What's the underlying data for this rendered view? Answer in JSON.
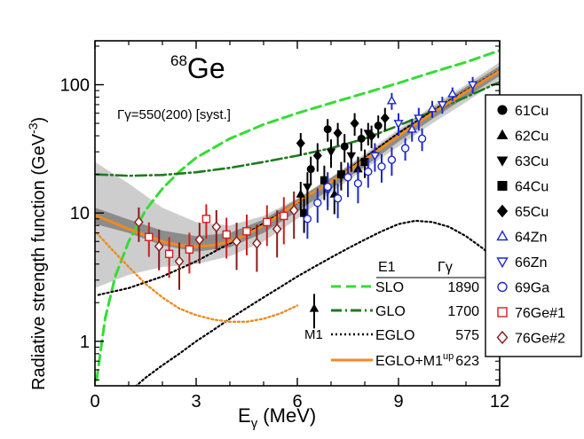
{
  "chart_data": {
    "type": "scatter",
    "nucleus": {
      "mass": "68",
      "element": "Ge"
    },
    "width_annotation": "Γγ=550(200) [syst.]",
    "xlabel": {
      "main": "E",
      "sub": "γ",
      "rest": " (MeV)"
    },
    "ylabel": {
      "main": "Radiative strength function (GeV",
      "sup": "-3",
      "end": ")"
    },
    "x_ticks": [
      0,
      3,
      6,
      9,
      12
    ],
    "y_ticks": [
      {
        "v": 1,
        "label": "1"
      },
      {
        "v": 10,
        "label": "10"
      },
      {
        "v": 100,
        "label": "100"
      }
    ],
    "xlim": [
      0,
      12
    ],
    "ylim": [
      0.45,
      220
    ],
    "y_scale": "log",
    "legend_markers": [
      {
        "label": "61Cu",
        "marker": "circle",
        "filled": true,
        "color": "#000000"
      },
      {
        "label": "62Cu",
        "marker": "triangle-up",
        "filled": true,
        "color": "#000000"
      },
      {
        "label": "63Cu",
        "marker": "triangle-down",
        "filled": true,
        "color": "#000000"
      },
      {
        "label": "64Cu",
        "marker": "square",
        "filled": true,
        "color": "#000000"
      },
      {
        "label": "65Cu",
        "marker": "diamond",
        "filled": true,
        "color": "#000000"
      },
      {
        "label": "64Zn",
        "marker": "triangle-up",
        "filled": false,
        "color": "#1e28c8"
      },
      {
        "label": "66Zn",
        "marker": "triangle-down",
        "filled": false,
        "color": "#1e28c8"
      },
      {
        "label": "69Ga",
        "marker": "circle",
        "filled": false,
        "color": "#1e28c8"
      },
      {
        "label": "76Ge#1",
        "marker": "square",
        "filled": false,
        "color": "#d21e1e"
      },
      {
        "label": "76Ge#2",
        "marker": "diamond",
        "filled": false,
        "color": "#8b1a1a"
      }
    ],
    "models_table": {
      "header": [
        "E1",
        "Γγ"
      ],
      "rows": [
        {
          "name": "SLO",
          "gamma": "1890",
          "color": "#33dd33",
          "dash": "long"
        },
        {
          "name": "GLO",
          "gamma": "1700",
          "color": "#1f7a1f",
          "dash": "dashdot"
        },
        {
          "name": "EGLO",
          "gamma": "575",
          "color": "#000000",
          "dash": "dot"
        },
        {
          "name": "EGLO+M1",
          "sup": "up",
          "gamma": "623",
          "color": "#f08a1e",
          "dash": "solid"
        }
      ]
    },
    "m1_label": "M1",
    "curves": {
      "SLO": {
        "x": [
          0.05,
          0.3,
          0.6,
          1.0,
          1.5,
          2.0,
          2.5,
          3.0,
          4.0,
          5.0,
          6.0,
          7.0,
          8.0,
          9.0,
          10.0,
          11.0,
          12.0
        ],
        "y": [
          0.5,
          1.5,
          3.2,
          6.0,
          10.5,
          15.5,
          21,
          27,
          38,
          49,
          60,
          72,
          86,
          103,
          125,
          150,
          185
        ]
      },
      "GLO": {
        "x": [
          0.05,
          1.0,
          2.0,
          3.0,
          4.0,
          5.0,
          6.0,
          7.0,
          8.0,
          9.0,
          10.0,
          11.0,
          12.0
        ],
        "y": [
          20,
          19.5,
          19.8,
          20.8,
          22.5,
          25,
          28,
          32,
          38,
          48,
          62,
          80,
          105
        ]
      },
      "EGLO": {
        "x": [
          0.1,
          1.0,
          2.0,
          3.0,
          4.0,
          5.0,
          6.0,
          7.0,
          8.0,
          9.0,
          10.0,
          11.0,
          12.0
        ],
        "y": [
          2.3,
          2.6,
          3.2,
          4.2,
          5.8,
          8.3,
          12.0,
          17.5,
          27,
          42,
          62,
          90,
          130
        ]
      },
      "EGLO+M1": {
        "x": [
          0.05,
          0.5,
          1.0,
          1.5,
          2.0,
          2.5,
          3.0,
          3.5,
          4.0,
          4.5,
          5.0,
          5.5,
          6.0,
          7.0,
          8.0,
          9.0,
          10.0,
          11.0,
          12.0
        ],
        "y": [
          9.5,
          8.5,
          7.5,
          6.7,
          6.0,
          5.6,
          5.5,
          5.6,
          6.0,
          6.8,
          8.0,
          9.8,
          12.2,
          17.5,
          26,
          40,
          60,
          88,
          128
        ]
      },
      "M1_spin_flip": {
        "x": [
          1.0,
          1.5,
          2.0,
          2.5,
          3.0,
          3.5,
          4.0,
          4.5,
          5.0,
          5.5,
          6.0,
          6.5,
          7.0,
          7.5,
          8.0,
          8.5,
          9.0,
          9.5,
          10.0,
          10.5,
          11.0,
          11.5,
          12.0
        ],
        "y": [
          0.4,
          0.52,
          0.65,
          0.8,
          1.0,
          1.22,
          1.5,
          1.82,
          2.2,
          2.65,
          3.2,
          3.8,
          4.5,
          5.3,
          6.2,
          7.2,
          8.2,
          8.7,
          8.5,
          7.8,
          6.6,
          5.3,
          4.1
        ]
      },
      "M1_orange_dotted": {
        "x": [
          0.05,
          0.5,
          1.0,
          1.5,
          2.0,
          2.5,
          3.0,
          3.5,
          4.0,
          4.5,
          5.0,
          5.5,
          6.0
        ],
        "y": [
          7.0,
          5.2,
          3.8,
          2.8,
          2.2,
          1.8,
          1.6,
          1.48,
          1.42,
          1.42,
          1.5,
          1.65,
          1.9
        ]
      }
    },
    "band_gray": {
      "x": [
        0.0,
        1.0,
        2.0,
        3.0,
        4.0,
        5.0,
        6.0,
        7.0,
        8.0,
        9.0,
        10.0,
        11.0,
        12.0
      ],
      "lo": [
        2.6,
        3.3,
        3.8,
        4.0,
        4.6,
        6.0,
        9.0,
        14.5,
        22,
        33,
        50,
        73,
        110
      ],
      "hi": [
        25,
        17,
        11,
        8.5,
        8.0,
        9.5,
        13.0,
        19,
        29,
        45,
        68,
        100,
        150
      ]
    },
    "band_dark": {
      "x": [
        0.0,
        1.0,
        2.0,
        3.0,
        4.0,
        5.0,
        6.0,
        7.0,
        8.0,
        9.0,
        10.0,
        11.0,
        12.0
      ],
      "lo": [
        8.2,
        7.0,
        5.6,
        5.0,
        5.4,
        7.0,
        10.3,
        15.5,
        23,
        36,
        54,
        80,
        117
      ],
      "hi": [
        11.0,
        8.9,
        7.3,
        6.6,
        7.0,
        8.9,
        12.8,
        18.8,
        28,
        43,
        65,
        96,
        140
      ]
    },
    "series": [
      {
        "name": "61Cu",
        "marker": "circle",
        "filled": true,
        "color": "#000000",
        "points": [
          [
            6.9,
            45,
            0.2
          ],
          [
            7.4,
            33,
            0.25
          ],
          [
            7.9,
            38,
            0.2
          ],
          [
            8.4,
            48,
            0.2
          ],
          [
            6.4,
            22,
            0.25
          ]
        ]
      },
      {
        "name": "62Cu",
        "marker": "triangle-up",
        "filled": true,
        "color": "#000000",
        "points": [
          [
            6.5,
            1.8,
            0.3
          ],
          [
            7.1,
            14,
            0.3
          ],
          [
            7.8,
            22,
            0.25
          ],
          [
            6.1,
            14,
            0.25
          ]
        ]
      },
      {
        "name": "63Cu",
        "marker": "triangle-down",
        "filled": true,
        "color": "#000000",
        "points": [
          [
            6.3,
            16,
            0.3
          ],
          [
            7.0,
            30,
            0.25
          ],
          [
            7.6,
            28,
            0.25
          ],
          [
            8.1,
            42,
            0.2
          ]
        ]
      },
      {
        "name": "64Cu",
        "marker": "square",
        "filled": true,
        "color": "#000000",
        "points": [
          [
            6.2,
            10,
            0.3
          ],
          [
            6.8,
            18,
            0.3
          ],
          [
            7.3,
            20,
            0.25
          ],
          [
            8.0,
            25,
            0.25
          ]
        ]
      },
      {
        "name": "65Cu",
        "marker": "diamond",
        "filled": true,
        "color": "#000000",
        "points": [
          [
            6.1,
            35,
            0.2
          ],
          [
            6.6,
            28,
            0.25
          ],
          [
            7.2,
            42,
            0.2
          ],
          [
            7.7,
            50,
            0.2
          ],
          [
            8.2,
            40,
            0.2
          ],
          [
            8.6,
            55,
            0.2
          ]
        ]
      },
      {
        "name": "64Zn",
        "marker": "triangle-up",
        "filled": false,
        "color": "#1e28c8",
        "points": [
          [
            8.8,
            75,
            0.15
          ],
          [
            9.4,
            45,
            0.2
          ],
          [
            10.0,
            65,
            0.15
          ],
          [
            10.6,
            85,
            0.12
          ]
        ]
      },
      {
        "name": "66Zn",
        "marker": "triangle-down",
        "filled": false,
        "color": "#1e28c8",
        "points": [
          [
            6.9,
            15,
            0.3
          ],
          [
            8.3,
            28,
            0.25
          ],
          [
            9.0,
            50,
            0.2
          ],
          [
            9.6,
            55,
            0.2
          ],
          [
            10.3,
            70,
            0.15
          ],
          [
            11.2,
            100,
            0.15
          ]
        ]
      },
      {
        "name": "69Ga",
        "marker": "circle",
        "filled": false,
        "color": "#1e28c8",
        "points": [
          [
            6.3,
            9,
            0.3
          ],
          [
            6.6,
            12,
            0.3
          ],
          [
            6.9,
            16,
            0.3
          ],
          [
            7.2,
            13,
            0.3
          ],
          [
            7.5,
            19,
            0.3
          ],
          [
            7.8,
            17,
            0.3
          ],
          [
            8.1,
            21,
            0.25
          ],
          [
            8.5,
            23,
            0.25
          ],
          [
            8.8,
            26,
            0.25
          ],
          [
            9.2,
            32,
            0.2
          ],
          [
            9.7,
            38,
            0.2
          ]
        ]
      },
      {
        "name": "76Ge#1",
        "marker": "square",
        "filled": false,
        "color": "#d21e1e",
        "points": [
          [
            1.6,
            6.5,
            0.3
          ],
          [
            2.2,
            4.8,
            0.35
          ],
          [
            2.8,
            5.2,
            0.35
          ],
          [
            3.3,
            9.0,
            0.3
          ],
          [
            3.9,
            6.8,
            0.35
          ],
          [
            4.5,
            7.2,
            0.35
          ],
          [
            5.1,
            8.5,
            0.35
          ],
          [
            5.6,
            9.5,
            0.4
          ]
        ]
      },
      {
        "name": "76Ge#2",
        "marker": "diamond",
        "filled": false,
        "color": "#8b1a1a",
        "points": [
          [
            1.3,
            8.5,
            0.3
          ],
          [
            1.9,
            5.5,
            0.35
          ],
          [
            2.5,
            4.2,
            0.4
          ],
          [
            3.1,
            6.2,
            0.35
          ],
          [
            3.6,
            7.8,
            0.35
          ],
          [
            4.2,
            6.0,
            0.4
          ],
          [
            4.8,
            5.8,
            0.4
          ],
          [
            5.4,
            7.5,
            0.4
          ],
          [
            5.9,
            10.5,
            0.4
          ]
        ]
      }
    ]
  }
}
